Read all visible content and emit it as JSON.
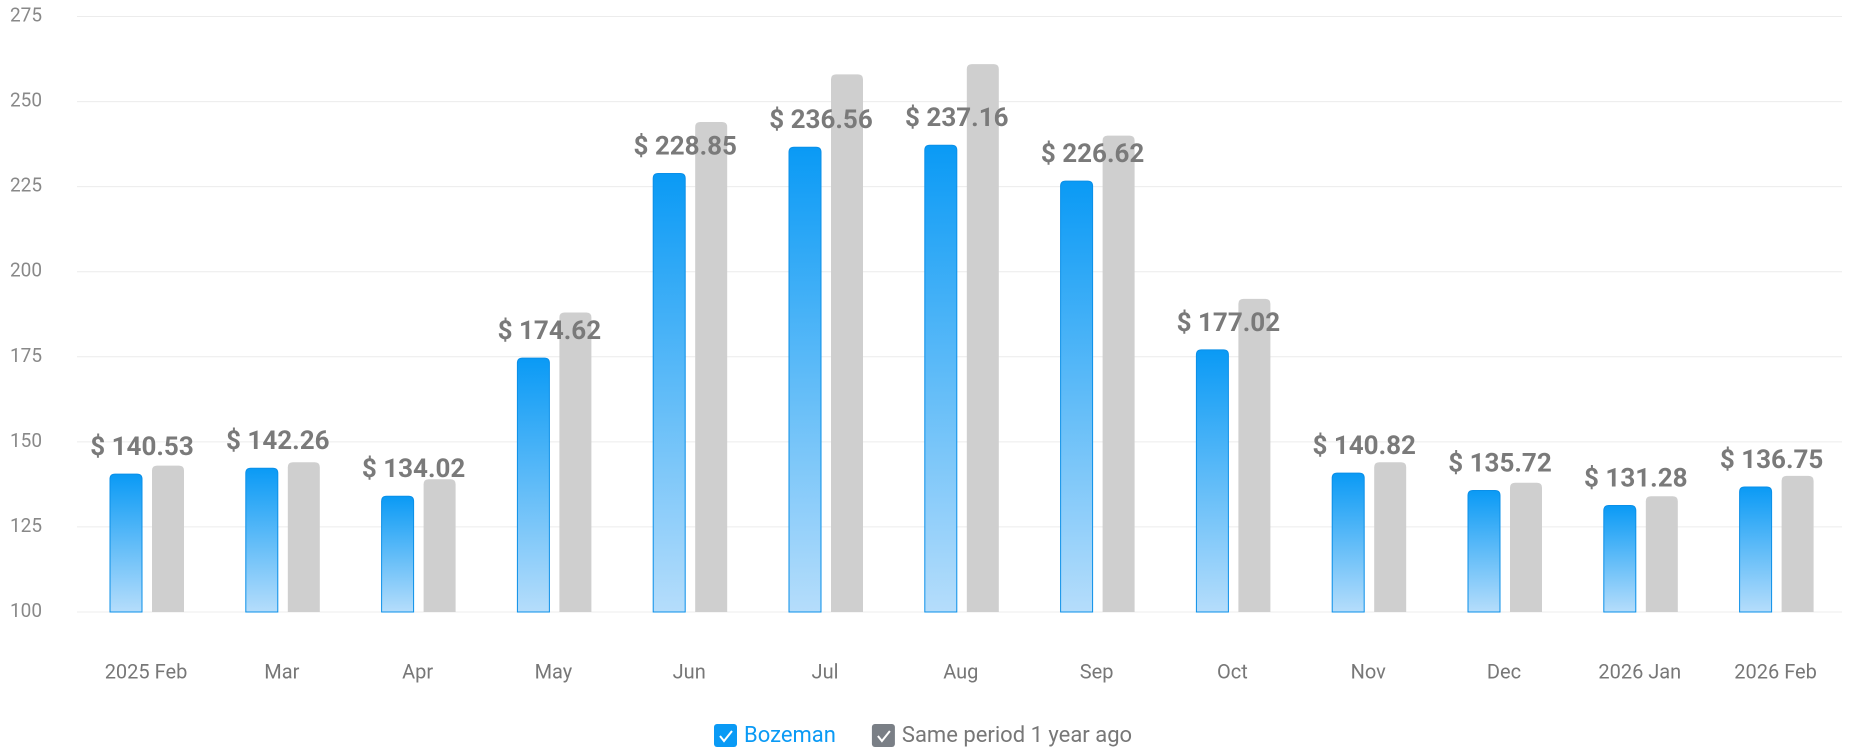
{
  "chart_data": {
    "type": "bar",
    "categories": [
      "2025 Feb",
      "Mar",
      "Apr",
      "May",
      "Jun",
      "Jul",
      "Aug",
      "Sep",
      "Oct",
      "Nov",
      "Dec",
      "2026 Jan",
      "2026 Feb"
    ],
    "series": [
      {
        "name": "Bozeman",
        "color": "#0a9af5",
        "values": [
          140.53,
          142.26,
          134.02,
          174.62,
          228.85,
          236.56,
          237.16,
          226.62,
          177.02,
          140.82,
          135.72,
          131.28,
          136.75
        ],
        "value_labels": [
          "$ 140.53",
          "$ 142.26",
          "$ 134.02",
          "$ 174.62",
          "$ 228.85",
          "$ 236.56",
          "$ 237.16",
          "$ 226.62",
          "$ 177.02",
          "$ 140.82",
          "$ 135.72",
          "$ 131.28",
          "$ 136.75"
        ]
      },
      {
        "name": "Same period 1 year ago",
        "color": "#cfcfcf",
        "values": [
          143,
          144,
          139,
          188,
          244,
          258,
          261,
          240,
          192,
          144,
          138,
          134,
          140
        ]
      }
    ],
    "ylim": [
      100,
      275
    ],
    "yticks": [
      100,
      125,
      150,
      175,
      200,
      225,
      250,
      275
    ],
    "grid": true
  }
}
